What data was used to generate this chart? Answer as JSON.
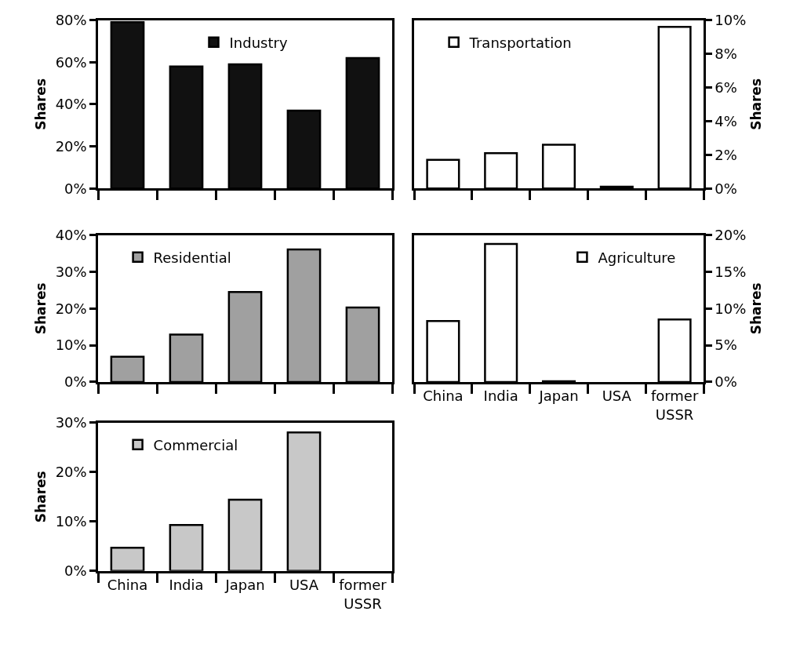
{
  "chart_data": [
    {
      "type": "bar",
      "ylabel": "Shares",
      "categories": [
        "China",
        "India",
        "Japan",
        "USA",
        "former USSR"
      ],
      "series": [
        {
          "name": "Industry",
          "color": "#111111",
          "values": [
            79,
            58,
            59,
            37,
            62
          ]
        }
      ],
      "ylim": [
        0,
        80
      ],
      "yticks": [
        {
          "value": 0,
          "label": "0%"
        },
        {
          "value": 20,
          "label": "20%"
        },
        {
          "value": 40,
          "label": "40%"
        },
        {
          "value": 60,
          "label": "60%"
        },
        {
          "value": 80,
          "label": "80%"
        }
      ],
      "legend": "top",
      "tick_labels": "y"
    },
    {
      "type": "bar",
      "y2label": "Shares",
      "categories": [
        "China",
        "India",
        "Japan",
        "USA",
        "former USSR"
      ],
      "series": [
        {
          "name": "Transportation",
          "color": "#ffffff",
          "axis": "y2",
          "values": [
            1.7,
            2.1,
            2.6,
            0.1,
            9.6
          ]
        }
      ],
      "y2lim": [
        0,
        10
      ],
      "y2ticks": [
        {
          "value": 0,
          "label": "0%"
        },
        {
          "value": 2,
          "label": "2%"
        },
        {
          "value": 4,
          "label": "4%"
        },
        {
          "value": 6,
          "label": "6%"
        },
        {
          "value": 8,
          "label": "8%"
        },
        {
          "value": 10,
          "label": "10%"
        }
      ],
      "legend": "top left",
      "tick_labels": "y"
    },
    {
      "type": "bar",
      "ylabel": "Shares",
      "categories": [
        "China",
        "India",
        "Japan",
        "USA",
        "former USSR"
      ],
      "series": [
        {
          "name": "Residential",
          "color": "#a0a0a0",
          "values": [
            6.9,
            12.9,
            24.5,
            36.1,
            20.3
          ]
        }
      ],
      "ylim": [
        0,
        40
      ],
      "yticks": [
        {
          "value": 0,
          "label": "0%"
        },
        {
          "value": 10,
          "label": "10%"
        },
        {
          "value": 20,
          "label": "20%"
        },
        {
          "value": 30,
          "label": "30%"
        },
        {
          "value": 40,
          "label": "40%"
        }
      ],
      "legend": "top left",
      "tick_labels": "y"
    },
    {
      "type": "bar",
      "y2label": "Shares",
      "categories": [
        "China",
        "India",
        "Japan",
        "USA",
        "former USSR"
      ],
      "series": [
        {
          "name": "Agriculture",
          "color": "#ffffff",
          "axis": "y2",
          "values": [
            8.3,
            18.8,
            0.1,
            null,
            8.5
          ]
        }
      ],
      "y2lim": [
        0,
        20
      ],
      "y2ticks": [
        {
          "value": 0,
          "label": "0%"
        },
        {
          "value": 5,
          "label": "5%"
        },
        {
          "value": 10,
          "label": "10%"
        },
        {
          "value": 15,
          "label": "15%"
        },
        {
          "value": 20,
          "label": "20%"
        }
      ],
      "legend": "top right"
    },
    {
      "type": "bar",
      "ylabel": "Shares",
      "categories": [
        "China",
        "India",
        "Japan",
        "USA",
        "former USSR"
      ],
      "series": [
        {
          "name": "Commercial",
          "color": "#c8c8c8",
          "values": [
            4.7,
            9.3,
            14.4,
            28,
            null
          ]
        }
      ],
      "ylim": [
        0,
        30
      ],
      "yticks": [
        {
          "value": 0,
          "label": "0%"
        },
        {
          "value": 10,
          "label": "10%"
        },
        {
          "value": 20,
          "label": "20%"
        },
        {
          "value": 30,
          "label": "30%"
        }
      ],
      "legend": "top left"
    }
  ]
}
